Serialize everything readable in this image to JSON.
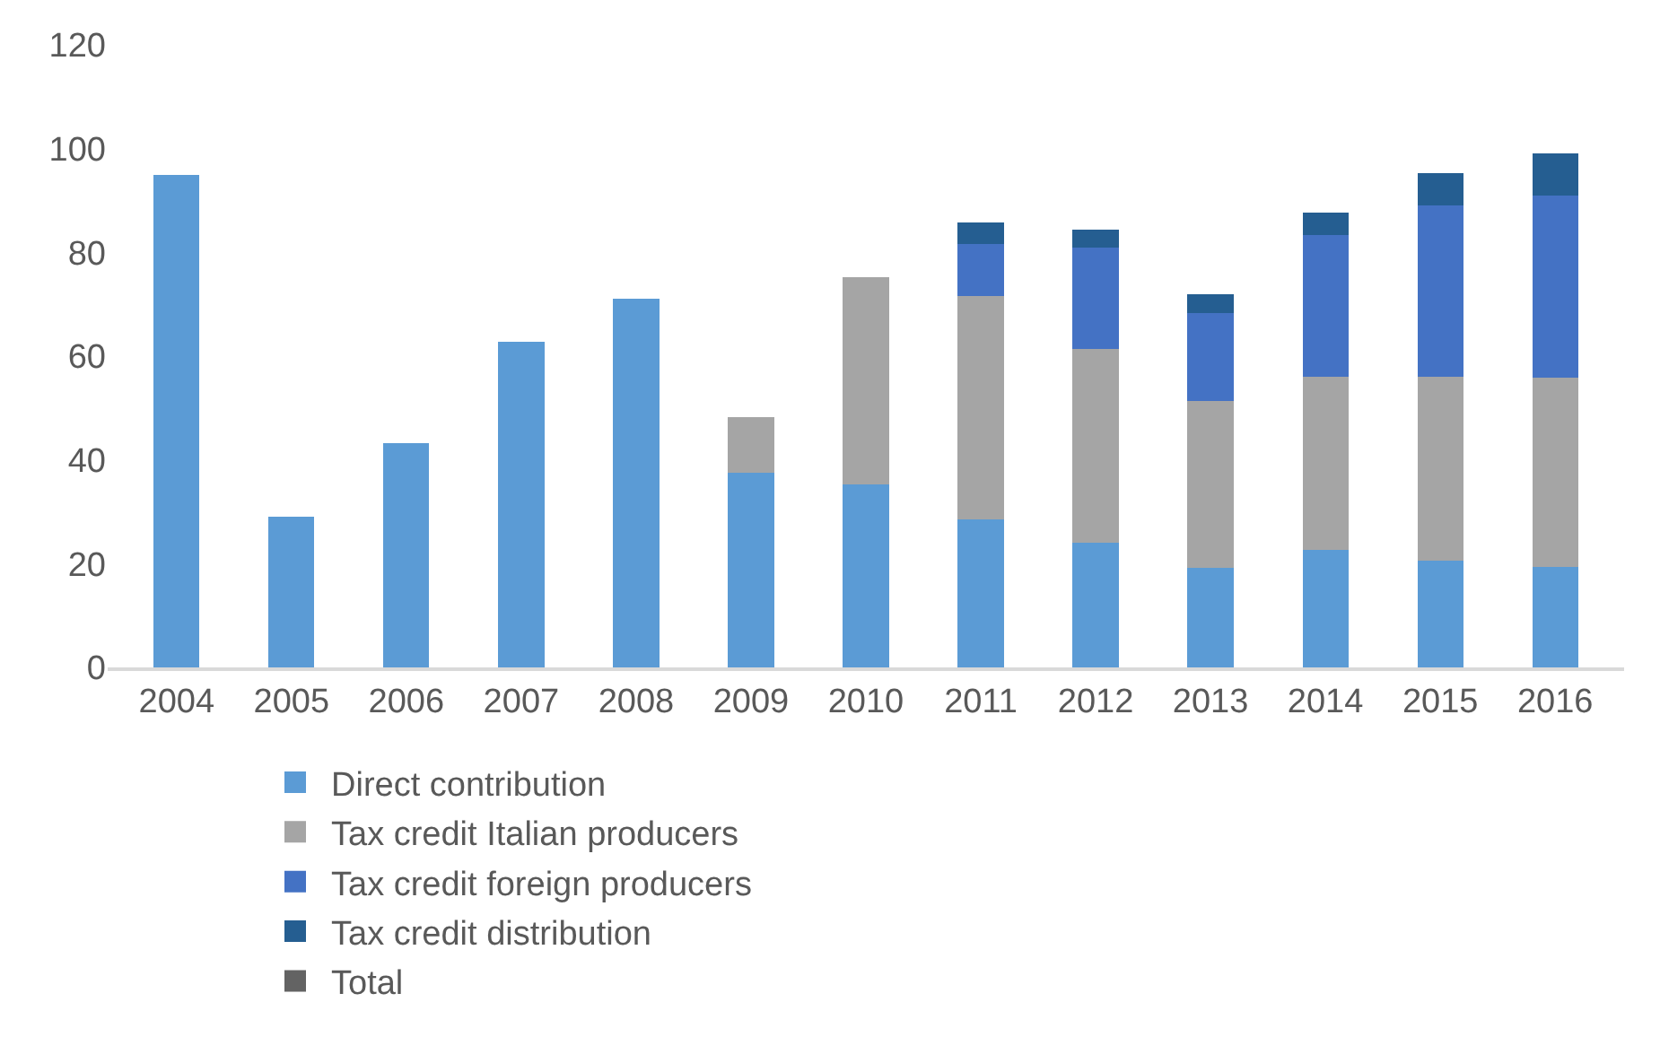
{
  "chart_data": {
    "type": "bar",
    "stacked": true,
    "categories": [
      "2004",
      "2005",
      "2006",
      "2007",
      "2008",
      "2009",
      "2010",
      "2011",
      "2012",
      "2013",
      "2014",
      "2015",
      "2016"
    ],
    "series": [
      {
        "name": "Direct contribution",
        "color": "#5b9bd5",
        "values": [
          95,
          29,
          43.3,
          62.8,
          71,
          37.6,
          35.3,
          28.5,
          24.0,
          19.2,
          22.6,
          20.6,
          19.3
        ]
      },
      {
        "name": "Tax credit Italian producers",
        "color": "#a5a5a5",
        "values": [
          null,
          null,
          null,
          null,
          null,
          10.7,
          39.9,
          43.1,
          37.4,
          32.1,
          33.4,
          35.4,
          36.5
        ]
      },
      {
        "name": "Tax credit foreign producers",
        "color": "#4472c4",
        "values": [
          null,
          null,
          null,
          null,
          null,
          null,
          null,
          10.0,
          19.5,
          17.0,
          27.4,
          33.1,
          35.2
        ]
      },
      {
        "name": "Tax credit distribution",
        "color": "#255e91",
        "values": [
          null,
          null,
          null,
          null,
          null,
          null,
          null,
          4.1,
          3.5,
          3.7,
          4.3,
          6.2,
          8.0
        ]
      },
      {
        "name": "Total",
        "color": "#636363",
        "values": [
          null,
          null,
          null,
          null,
          null,
          null,
          null,
          null,
          null,
          null,
          null,
          null,
          null
        ]
      }
    ],
    "ylim": [
      0,
      120
    ],
    "yticks": [
      0,
      20,
      40,
      60,
      80,
      100,
      120
    ],
    "grid": false,
    "legend": "bottom"
  }
}
